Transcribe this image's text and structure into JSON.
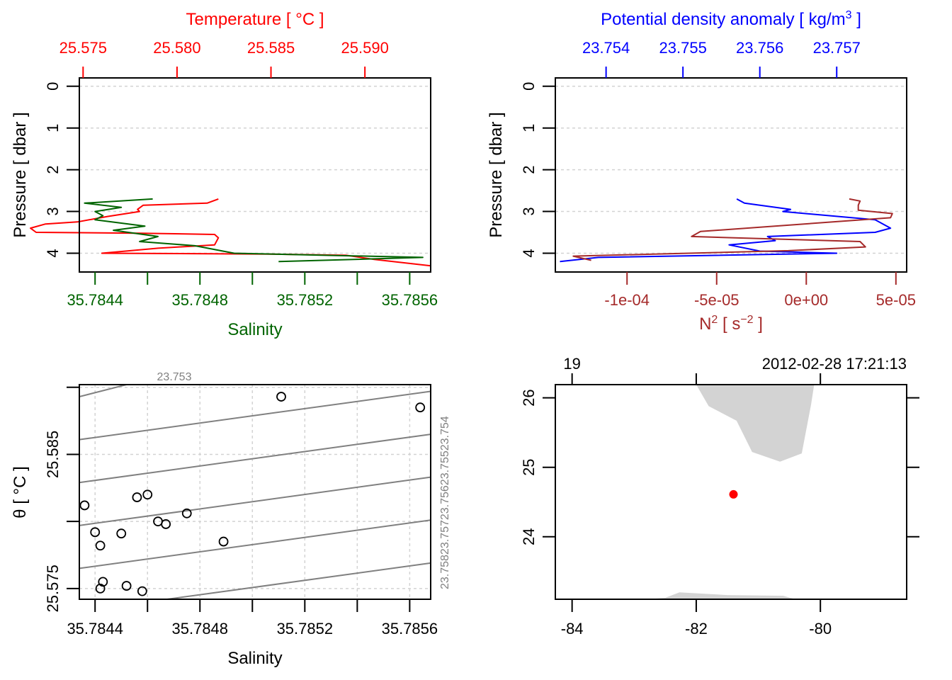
{
  "colors": {
    "temperature": "#ff0000",
    "salinity": "#006400",
    "density": "#0000ff",
    "n2": "#a52a2a",
    "isopycnal": "#808080",
    "grid": "#d3d3d3",
    "land": "#d3d3d3",
    "station": "#ff0000",
    "axis": "#000000"
  },
  "chart_data": [
    {
      "id": "profile-ts",
      "type": "line",
      "ylabel": "Pressure [ dbar ]",
      "ylim": [
        4.45,
        -0.2
      ],
      "yticks": [
        0,
        1,
        2,
        3,
        4
      ],
      "grid": "horizontal dashed",
      "top_axis": {
        "label": "Temperature [ °C ]",
        "range": [
          25.5748,
          25.5935
        ],
        "ticks": [
          25.575,
          25.58,
          25.585,
          25.59
        ],
        "tick_labels": [
          "25.575",
          "25.580",
          "25.585",
          "25.590"
        ]
      },
      "bottom_axis": {
        "label": "Salinity",
        "range": [
          35.78434,
          35.78568
        ],
        "ticks": [
          35.7844,
          35.7846,
          35.7848,
          35.785,
          35.7852,
          35.7854,
          35.7856
        ],
        "tick_labels": [
          "35.7844",
          "",
          "35.7848",
          "",
          "35.7852",
          "",
          "35.7856"
        ]
      },
      "series": [
        {
          "name": "Temperature",
          "axis": "top",
          "points": [
            [
              25.5822,
              2.7
            ],
            [
              25.5816,
              2.8
            ],
            [
              25.5782,
              2.85
            ],
            [
              25.5779,
              2.95
            ],
            [
              25.578,
              3.0
            ],
            [
              25.5763,
              3.12
            ],
            [
              25.5747,
              3.25
            ],
            [
              25.573,
              3.3
            ],
            [
              25.5722,
              3.4
            ],
            [
              25.5725,
              3.5
            ],
            [
              25.578,
              3.52
            ],
            [
              25.582,
              3.55
            ],
            [
              25.5822,
              3.63
            ],
            [
              25.582,
              3.8
            ],
            [
              25.579,
              3.88
            ],
            [
              25.576,
              4.0
            ],
            [
              25.585,
              4.02
            ],
            [
              25.589,
              4.05
            ],
            [
              25.5905,
              4.15
            ],
            [
              25.5935,
              4.3
            ]
          ]
        },
        {
          "name": "Salinity",
          "axis": "bottom",
          "points": [
            [
              35.78462,
              2.7
            ],
            [
              35.78436,
              2.8
            ],
            [
              35.7845,
              2.9
            ],
            [
              35.7844,
              3.0
            ],
            [
              35.78443,
              3.1
            ],
            [
              35.7844,
              3.2
            ],
            [
              35.78459,
              3.35
            ],
            [
              35.78447,
              3.45
            ],
            [
              35.78464,
              3.6
            ],
            [
              35.78457,
              3.72
            ],
            [
              35.78478,
              3.82
            ],
            [
              35.78493,
              4.0
            ],
            [
              35.78565,
              4.1
            ],
            [
              35.7851,
              4.2
            ]
          ]
        }
      ]
    },
    {
      "id": "profile-density-n2",
      "type": "line",
      "ylabel": "Pressure [ dbar ]",
      "ylim": [
        4.45,
        -0.2
      ],
      "yticks": [
        0,
        1,
        2,
        3,
        4
      ],
      "grid": "horizontal dashed",
      "top_axis": {
        "label": "Potential density anomaly [ kg/m³ ]",
        "range": [
          23.75334,
          23.75791
        ],
        "ticks": [
          23.754,
          23.755,
          23.756,
          23.757
        ],
        "tick_labels": [
          "23.754",
          "23.755",
          "23.756",
          "23.757"
        ]
      },
      "bottom_axis": {
        "label": "N² [ s⁻² ]",
        "range": [
          -0.00014,
          5.6e-05
        ],
        "ticks": [
          -0.0001,
          -5e-05,
          0,
          5e-05
        ],
        "tick_labels": [
          "-1e-04",
          "-5e-05",
          "0e+00",
          "5e-05"
        ]
      },
      "series": [
        {
          "name": "Potential density anomaly",
          "axis": "top",
          "points": [
            [
              23.7557,
              2.7
            ],
            [
              23.7558,
              2.8
            ],
            [
              23.7564,
              2.95
            ],
            [
              23.7563,
              3.0
            ],
            [
              23.7575,
              3.2
            ],
            [
              23.7577,
              3.4
            ],
            [
              23.7575,
              3.5
            ],
            [
              23.7561,
              3.6
            ],
            [
              23.7562,
              3.7
            ],
            [
              23.7556,
              3.8
            ],
            [
              23.756,
              3.95
            ],
            [
              23.757,
              4.0
            ],
            [
              23.7539,
              4.1
            ],
            [
              23.7534,
              4.2
            ]
          ]
        },
        {
          "name": "N²",
          "axis": "bottom",
          "points": [
            [
              2.4e-05,
              2.7
            ],
            [
              3e-05,
              2.75
            ],
            [
              2.9e-05,
              2.85
            ],
            [
              2.9e-05,
              2.97
            ],
            [
              4.8e-05,
              3.05
            ],
            [
              4.7e-05,
              3.15
            ],
            [
              -5.9e-05,
              3.48
            ],
            [
              -6.4e-05,
              3.6
            ],
            [
              3e-05,
              3.72
            ],
            [
              3.3e-05,
              3.85
            ],
            [
              -1e-05,
              3.94
            ],
            [
              -0.00013,
              4.07
            ],
            [
              -0.00012,
              4.17
            ]
          ]
        }
      ]
    },
    {
      "id": "ts-diagram",
      "type": "scatter",
      "xlabel": "Salinity",
      "ylabel": "θ [ °C ]",
      "xlim": [
        35.78434,
        35.78568
      ],
      "ylim": [
        25.5742,
        25.5902
      ],
      "xticks": [
        35.7844,
        35.7846,
        35.7848,
        35.785,
        35.7852,
        35.7854,
        35.7856
      ],
      "xtick_labels": [
        "35.7844",
        "",
        "35.7848",
        "",
        "35.7852",
        "",
        "35.7856"
      ],
      "yticks": [
        25.575,
        25.58,
        25.585,
        25.59
      ],
      "ytick_labels": [
        "25.575",
        "",
        "25.585",
        ""
      ],
      "grid": "dashed",
      "isopycnals": {
        "labels": [
          "23.753",
          "23.754",
          "23.755",
          "23.756",
          "23.757",
          "23.758"
        ],
        "right_label_text": "23.75823.75723.75623.75523.754",
        "top_label_text": "23.753",
        "lines": [
          {
            "sigma": 23.753,
            "theta_left": 25.5893,
            "theta_right": 25.596
          },
          {
            "sigma": 23.754,
            "theta_left": 25.5861,
            "theta_right": 25.5897
          },
          {
            "sigma": 23.755,
            "theta_left": 25.5829,
            "theta_right": 25.5865
          },
          {
            "sigma": 23.756,
            "theta_left": 25.5797,
            "theta_right": 25.5833
          },
          {
            "sigma": 23.757,
            "theta_left": 25.5765,
            "theta_right": 25.5801
          },
          {
            "sigma": 23.758,
            "theta_left": 25.5733,
            "theta_right": 25.5769
          }
        ]
      },
      "points": [
        [
          35.78436,
          25.5812
        ],
        [
          35.7844,
          25.5792
        ],
        [
          35.78442,
          25.5782
        ],
        [
          35.78442,
          25.575
        ],
        [
          35.78443,
          25.5755
        ],
        [
          35.7845,
          25.5791
        ],
        [
          35.78452,
          25.5752
        ],
        [
          35.78456,
          25.5818
        ],
        [
          35.78458,
          25.5748
        ],
        [
          35.7846,
          25.582
        ],
        [
          35.78464,
          25.58
        ],
        [
          35.78467,
          25.5798
        ],
        [
          35.78475,
          25.5806
        ],
        [
          35.78489,
          25.5785
        ],
        [
          35.78511,
          25.5893
        ],
        [
          35.78564,
          25.5885
        ]
      ]
    },
    {
      "id": "station-map",
      "type": "scatter",
      "xlim": [
        -84.27,
        -78.61
      ],
      "ylim": [
        23.1,
        26.19
      ],
      "xticks": [
        -84,
        -82,
        -80
      ],
      "xtick_labels": [
        "-84",
        "-82",
        "-80"
      ],
      "yticks": [
        24,
        25,
        26
      ],
      "ytick_labels": [
        "24",
        "25",
        "26"
      ],
      "top_axis": {
        "ticks": [
          -84,
          -82,
          -80
        ],
        "tick_labels": [
          "19",
          "",
          "2012-02-28 17:21:13"
        ]
      },
      "station": {
        "lon": -81.4,
        "lat": 24.61
      },
      "land_polygons": [
        [
          [
            -82.0,
            26.19
          ],
          [
            -81.8,
            25.88
          ],
          [
            -81.35,
            25.67
          ],
          [
            -81.1,
            25.22
          ],
          [
            -80.65,
            25.08
          ],
          [
            -80.3,
            25.2
          ],
          [
            -80.15,
            25.9
          ],
          [
            -80.1,
            26.19
          ]
        ],
        [
          [
            -82.8,
            23.1
          ],
          [
            -82.5,
            23.12
          ],
          [
            -82.27,
            23.2
          ],
          [
            -81.5,
            23.16
          ],
          [
            -80.6,
            23.15
          ],
          [
            -80.4,
            23.1
          ]
        ]
      ]
    }
  ]
}
